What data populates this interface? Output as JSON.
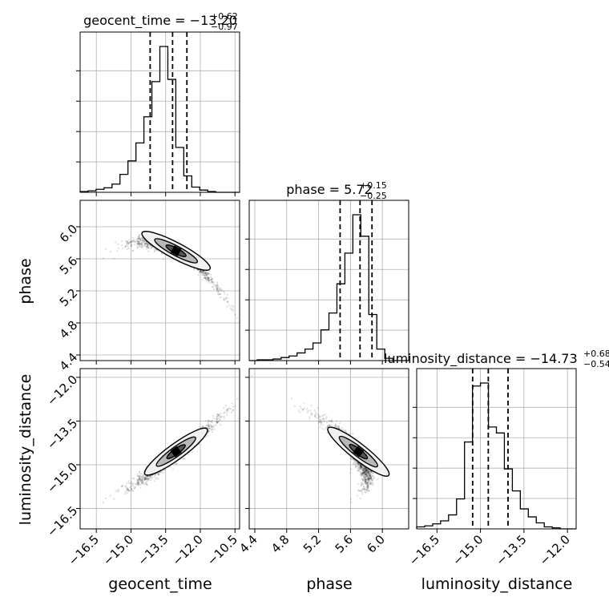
{
  "chart_data": {
    "type": "corner",
    "parameters": [
      {
        "name": "geocent_time",
        "title_prefix": "geocent_time = ",
        "median": "−13.20",
        "upper_err": "+0.62",
        "lower_err": "−0.97",
        "range": [
          -17.2,
          -10.3
        ],
        "ticks": [
          -16.5,
          -15.0,
          -13.5,
          -12.0,
          -10.5
        ],
        "tick_labels": [
          "−16.5",
          "−15.0",
          "−13.5",
          "−12.0",
          "−10.5"
        ],
        "quantiles": [
          -14.17,
          -13.2,
          -12.58
        ],
        "hist_edges": [
          -17.2,
          -16.855,
          -16.51,
          -16.165,
          -15.82,
          -15.475,
          -15.13,
          -14.785,
          -14.44,
          -14.095,
          -13.75,
          -13.405,
          -13.06,
          -12.715,
          -12.37,
          -12.025,
          -11.68,
          -11.335,
          -10.99,
          -10.645,
          -10.3
        ],
        "hist_counts": [
          1,
          2,
          4,
          6,
          11,
          24,
          42,
          66,
          101,
          148,
          195,
          151,
          60,
          22,
          7,
          3,
          1,
          0,
          0,
          0
        ]
      },
      {
        "name": "phase",
        "title_prefix": "phase = ",
        "median": "5.72",
        "upper_err": "+0.15",
        "lower_err": "−0.25",
        "range": [
          4.33,
          6.33
        ],
        "ticks": [
          4.4,
          4.8,
          5.2,
          5.6,
          6.0
        ],
        "tick_labels": [
          "4.4",
          "4.8",
          "5.2",
          "5.6",
          "6.0"
        ],
        "quantiles": [
          5.47,
          5.72,
          5.87
        ],
        "hist_edges": [
          4.33,
          4.43,
          4.53,
          4.63,
          4.73,
          4.83,
          4.93,
          5.03,
          5.13,
          5.23,
          5.33,
          5.43,
          5.53,
          5.63,
          5.73,
          5.83,
          5.93,
          6.03,
          6.13,
          6.23,
          6.33
        ],
        "hist_counts": [
          0,
          1,
          1,
          2,
          4,
          6,
          10,
          15,
          23,
          40,
          62,
          100,
          140,
          190,
          162,
          60,
          15,
          3,
          0,
          0
        ]
      },
      {
        "name": "luminosity_distance",
        "title_prefix": "luminosity_distance = ",
        "median": "−14.73",
        "upper_err": "+0.68",
        "lower_err": "−0.54",
        "range": [
          -17.2,
          -11.7
        ],
        "ticks": [
          -16.5,
          -15.0,
          -13.5,
          -12.0
        ],
        "tick_labels": [
          "−16.5",
          "−15.0",
          "−13.5",
          "−12.0"
        ],
        "quantiles": [
          -15.27,
          -14.73,
          -14.05
        ],
        "hist_edges": [
          -17.2,
          -16.925,
          -16.65,
          -16.375,
          -16.1,
          -15.825,
          -15.55,
          -15.275,
          -15.0,
          -14.725,
          -14.45,
          -14.175,
          -13.9,
          -13.625,
          -13.35,
          -13.075,
          -12.8,
          -12.525,
          -12.25,
          -11.975,
          -11.7
        ],
        "hist_counts": [
          2,
          3,
          5,
          8,
          14,
          30,
          87,
          143,
          146,
          102,
          96,
          60,
          38,
          20,
          12,
          6,
          2,
          1,
          0,
          0
        ]
      }
    ],
    "contour_levels": [
      0.118,
      0.393,
      0.675
    ]
  }
}
